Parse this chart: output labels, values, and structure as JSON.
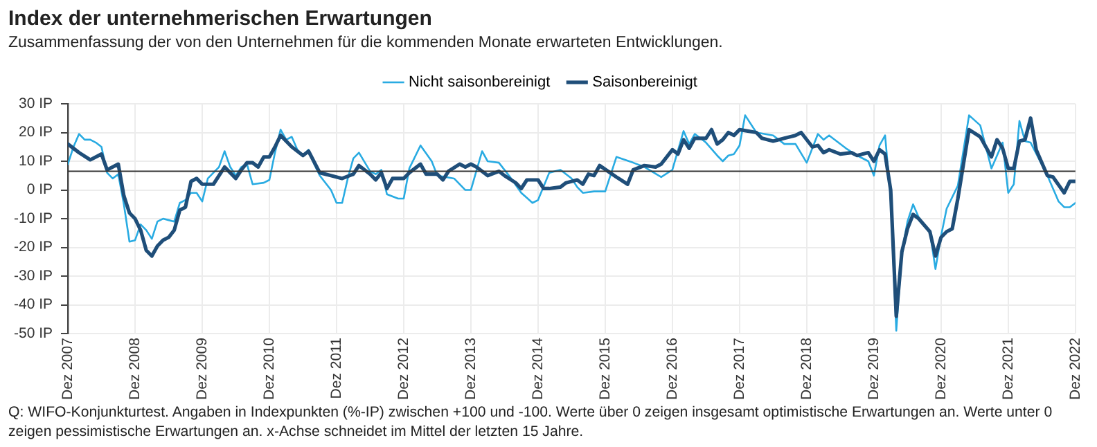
{
  "chart_data": {
    "type": "line",
    "title": "Index der unternehmerischen Erwartungen",
    "subtitle": "Zusammenfassung der von den Unternehmen für die kommenden Monate erwarteten Entwicklungen.",
    "annotations": [
      "Q: WIFO-Konjunkturtest. Angaben in Indexpunkten (%-IP) zwischen +100 und -100. Werte über 0 zeigen insgesamt optimistische Erwartungen an. Werte unter 0 zeigen pessimistische Erwartungen an. x-Achse schneidet im Mittel der letzten 15 Jahre."
    ],
    "xlim": [
      "2007-12",
      "2022-12"
    ],
    "xticks": [
      {
        "value": "2007-12",
        "label": "Dez 2007"
      },
      {
        "value": "2008-12",
        "label": "Dez 2008"
      },
      {
        "value": "2009-12",
        "label": "Dez 2009"
      },
      {
        "value": "2010-12",
        "label": "Dez 2010"
      },
      {
        "value": "2011-12",
        "label": "Dez 2011"
      },
      {
        "value": "2012-12",
        "label": "Dez 2012"
      },
      {
        "value": "2013-12",
        "label": "Dez 2013"
      },
      {
        "value": "2014-12",
        "label": "Dez 2014"
      },
      {
        "value": "2015-12",
        "label": "Dez 2015"
      },
      {
        "value": "2016-12",
        "label": "Dez 2016"
      },
      {
        "value": "2017-12",
        "label": "Dez 2017"
      },
      {
        "value": "2018-12",
        "label": "Dez 2018"
      },
      {
        "value": "2019-12",
        "label": "Dez 2019"
      },
      {
        "value": "2020-12",
        "label": "Dez 2020"
      },
      {
        "value": "2021-12",
        "label": "Dez 2021"
      },
      {
        "value": "2022-12",
        "label": "Dez 2022"
      }
    ],
    "ylim": [
      -50,
      30
    ],
    "yticks": [
      {
        "value": -50,
        "label": "-50 IP"
      },
      {
        "value": -40,
        "label": "-40 IP"
      },
      {
        "value": -30,
        "label": "-30 IP"
      },
      {
        "value": -20,
        "label": "-20 IP"
      },
      {
        "value": -10,
        "label": "-10 IP"
      },
      {
        "value": 0,
        "label": "0 IP"
      },
      {
        "value": 10,
        "label": "10 IP"
      },
      {
        "value": 20,
        "label": "20 IP"
      },
      {
        "value": 30,
        "label": "30 IP"
      }
    ],
    "grid": true,
    "legend": "top",
    "marker": "none",
    "line_style": "solid",
    "ref_lines": [
      {
        "axis": "y",
        "value": 6.5,
        "color": "#333333"
      }
    ],
    "series": [
      {
        "name": "Nicht saisonbereinigt",
        "color": "#29abe2",
        "x": [
          "2007-12",
          "2008-01",
          "2008-02",
          "2008-03",
          "2008-04",
          "2008-05",
          "2008-06",
          "2008-07",
          "2008-08",
          "2008-09",
          "2008-10",
          "2008-11",
          "2008-12",
          "2009-01",
          "2009-02",
          "2009-03",
          "2009-04",
          "2009-05",
          "2009-06",
          "2009-07",
          "2009-08",
          "2009-09",
          "2009-10",
          "2009-11",
          "2009-12",
          "2010-01",
          "2010-03",
          "2010-04",
          "2010-05",
          "2010-06",
          "2010-07",
          "2010-08",
          "2010-09",
          "2010-11",
          "2010-12",
          "2011-01",
          "2011-02",
          "2011-03",
          "2011-04",
          "2011-05",
          "2011-06",
          "2011-07",
          "2011-08",
          "2011-09",
          "2011-11",
          "2011-12",
          "2012-01",
          "2012-02",
          "2012-03",
          "2012-04",
          "2012-06",
          "2012-07",
          "2012-08",
          "2012-09",
          "2012-11",
          "2012-12",
          "2013-01",
          "2013-03",
          "2013-05",
          "2013-06",
          "2013-09",
          "2013-11",
          "2013-12",
          "2014-02",
          "2014-03",
          "2014-05",
          "2014-07",
          "2014-09",
          "2014-11",
          "2014-12",
          "2015-02",
          "2015-04",
          "2015-06",
          "2015-07",
          "2015-08",
          "2015-10",
          "2015-12",
          "2016-02",
          "2016-05",
          "2016-07",
          "2016-10",
          "2016-12",
          "2017-02",
          "2017-03",
          "2017-04",
          "2017-06",
          "2017-08",
          "2017-09",
          "2017-10",
          "2017-11",
          "2017-12",
          "2018-01",
          "2018-03",
          "2018-06",
          "2018-08",
          "2018-10",
          "2018-12",
          "2019-02",
          "2019-03",
          "2019-04",
          "2019-07",
          "2019-09",
          "2019-11",
          "2019-12",
          "2020-01",
          "2020-02",
          "2020-03",
          "2020-04",
          "2020-05",
          "2020-06",
          "2020-07",
          "2020-08",
          "2020-10",
          "2020-11",
          "2020-12",
          "2021-01",
          "2021-03",
          "2021-05",
          "2021-07",
          "2021-09",
          "2021-11",
          "2021-12",
          "2022-01",
          "2022-02",
          "2022-03",
          "2022-04",
          "2022-07",
          "2022-09",
          "2022-10",
          "2022-11",
          "2022-12"
        ],
        "values": [
          9,
          15,
          19.5,
          17.5,
          17.5,
          16.5,
          15,
          6,
          4,
          5.5,
          -5,
          -18,
          -17.5,
          -12,
          -14,
          -17,
          -11,
          -10,
          -10.5,
          -11,
          -4.5,
          -3.5,
          -1,
          -1,
          -4,
          4,
          8,
          13.5,
          8,
          5,
          8,
          9,
          2,
          2.5,
          3.5,
          13,
          21,
          17.5,
          18.5,
          14,
          12,
          14,
          9,
          5,
          0,
          -4.5,
          -4.5,
          4,
          11,
          13,
          6.5,
          5.5,
          7,
          -1.5,
          -3,
          -3,
          7.5,
          15.5,
          10,
          5,
          4,
          0,
          0,
          13.5,
          10,
          9.5,
          4.5,
          -1,
          -4.5,
          -3.5,
          6,
          7,
          4,
          1,
          -1,
          -0.5,
          -0.5,
          11.5,
          9.5,
          8,
          4.5,
          7,
          20.5,
          16,
          19.5,
          16.5,
          12,
          10,
          12,
          12.5,
          15.5,
          26,
          20,
          19,
          16,
          16,
          9.5,
          19.5,
          17.5,
          19,
          14.5,
          12,
          10,
          5,
          15.5,
          19,
          -3,
          -49,
          -21.5,
          -11,
          -5,
          -9.5,
          -14.5,
          -27.5,
          -16,
          -6.5,
          1.5,
          26,
          22.5,
          7.5,
          16.5,
          -1,
          2,
          24,
          17,
          16.5,
          5,
          -4,
          -6,
          -6,
          -4.5
        ]
      },
      {
        "name": "Saisonbereinigt",
        "color": "#1f4e79",
        "x": [
          "2007-12",
          "2008-02",
          "2008-04",
          "2008-06",
          "2008-07",
          "2008-09",
          "2008-10",
          "2008-11",
          "2008-12",
          "2009-01",
          "2009-02",
          "2009-03",
          "2009-04",
          "2009-05",
          "2009-06",
          "2009-07",
          "2009-08",
          "2009-09",
          "2009-10",
          "2009-11",
          "2009-12",
          "2010-02",
          "2010-04",
          "2010-06",
          "2010-07",
          "2010-08",
          "2010-09",
          "2010-10",
          "2010-11",
          "2010-12",
          "2011-01",
          "2011-02",
          "2011-04",
          "2011-06",
          "2011-07",
          "2011-09",
          "2011-11",
          "2012-01",
          "2012-03",
          "2012-04",
          "2012-06",
          "2012-07",
          "2012-08",
          "2012-09",
          "2012-10",
          "2012-12",
          "2013-01",
          "2013-03",
          "2013-04",
          "2013-06",
          "2013-07",
          "2013-08",
          "2013-10",
          "2013-11",
          "2013-12",
          "2014-01",
          "2014-03",
          "2014-05",
          "2014-06",
          "2014-08",
          "2014-09",
          "2014-10",
          "2014-12",
          "2015-01",
          "2015-02",
          "2015-04",
          "2015-05",
          "2015-07",
          "2015-08",
          "2015-09",
          "2015-10",
          "2015-11",
          "2016-02",
          "2016-04",
          "2016-05",
          "2016-07",
          "2016-09",
          "2016-10",
          "2016-12",
          "2017-01",
          "2017-02",
          "2017-03",
          "2017-04",
          "2017-06",
          "2017-07",
          "2017-08",
          "2017-09",
          "2017-10",
          "2017-11",
          "2017-12",
          "2018-03",
          "2018-04",
          "2018-06",
          "2018-08",
          "2018-10",
          "2018-11",
          "2019-01",
          "2019-02",
          "2019-03",
          "2019-04",
          "2019-06",
          "2019-08",
          "2019-09",
          "2019-11",
          "2019-12",
          "2020-01",
          "2020-02",
          "2020-03",
          "2020-04",
          "2020-05",
          "2020-06",
          "2020-07",
          "2020-08",
          "2020-10",
          "2020-11",
          "2020-12",
          "2021-01",
          "2021-02",
          "2021-03",
          "2021-05",
          "2021-07",
          "2021-09",
          "2021-10",
          "2021-11",
          "2021-12",
          "2022-01",
          "2022-02",
          "2022-03",
          "2022-04",
          "2022-05",
          "2022-07",
          "2022-08",
          "2022-10",
          "2022-11",
          "2022-12"
        ],
        "values": [
          16,
          13,
          10.5,
          12.5,
          7,
          9,
          -2,
          -8,
          -10,
          -14,
          -21,
          -23,
          -19.5,
          -17.5,
          -16.5,
          -14,
          -7,
          -6,
          3,
          4,
          2,
          2,
          8,
          4,
          7,
          9.5,
          9.5,
          8,
          11.5,
          11.5,
          15,
          19,
          15,
          12,
          13.5,
          6,
          5,
          4,
          5.5,
          8.5,
          5.5,
          3.5,
          6,
          0.5,
          4,
          4,
          6,
          9,
          5.5,
          5.5,
          3.5,
          6.5,
          9,
          8,
          9,
          8,
          5,
          6.5,
          5,
          2.5,
          0.5,
          3.5,
          3.5,
          0.5,
          0.5,
          1,
          2.5,
          3.5,
          2,
          5.5,
          5,
          8.5,
          4.5,
          2,
          7,
          8.5,
          8,
          9,
          14,
          12.5,
          17.5,
          14.5,
          18,
          18,
          21,
          16,
          17.5,
          20,
          19,
          21,
          20,
          18,
          17,
          18,
          19,
          20,
          15,
          15.5,
          13,
          14,
          12.5,
          13,
          12,
          13,
          10,
          14,
          12.5,
          0,
          -44,
          -21.5,
          -13.5,
          -8.5,
          -10,
          -14.5,
          -23,
          -16.5,
          -14.5,
          -13.5,
          -3,
          21,
          18.5,
          11.5,
          17.5,
          14.5,
          7.5,
          7.5,
          17,
          17.5,
          25,
          14,
          5,
          4.5,
          -1,
          3,
          3
        ]
      }
    ]
  }
}
